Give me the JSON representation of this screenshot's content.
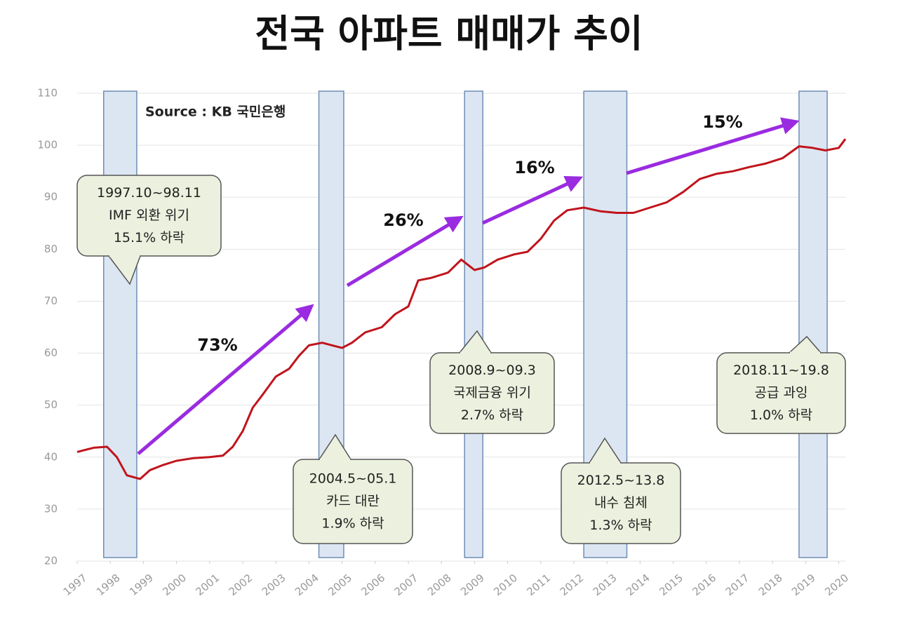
{
  "chart_data": {
    "type": "line",
    "title": "전국 아파트 매매가 추이",
    "source": "Source :  KB 국민은행",
    "x": [
      1997.0,
      1997.5,
      1997.9,
      1998.2,
      1998.5,
      1998.9,
      1999.2,
      1999.6,
      2000.0,
      2000.5,
      2001.0,
      2001.4,
      2001.7,
      2002.0,
      2002.3,
      2002.6,
      2003.0,
      2003.4,
      2003.7,
      2004.0,
      2004.4,
      2004.7,
      2005.0,
      2005.3,
      2005.7,
      2006.2,
      2006.6,
      2007.0,
      2007.3,
      2007.7,
      2008.2,
      2008.6,
      2009.0,
      2009.3,
      2009.7,
      2010.2,
      2010.6,
      2011.0,
      2011.4,
      2011.8,
      2012.3,
      2012.8,
      2013.3,
      2013.8,
      2014.3,
      2014.8,
      2015.3,
      2015.8,
      2016.3,
      2016.8,
      2017.3,
      2017.8,
      2018.3,
      2018.8,
      2019.2,
      2019.6,
      2020.0,
      2020.2
    ],
    "values": [
      41,
      41.8,
      42,
      40,
      36.5,
      35.8,
      37.5,
      38.5,
      39.3,
      39.8,
      40,
      40.3,
      42,
      45,
      49.5,
      52,
      55.5,
      57,
      59.5,
      61.5,
      62,
      61.5,
      61,
      62,
      64,
      65,
      67.5,
      69,
      74,
      74.5,
      75.5,
      78,
      76,
      76.5,
      78,
      79,
      79.5,
      82,
      85.5,
      87.5,
      88,
      87.3,
      87,
      87,
      88,
      89,
      91,
      93.5,
      94.5,
      95,
      95.8,
      96.5,
      97.5,
      99.8,
      99.5,
      99,
      99.5,
      101.2
    ],
    "color": "#c0141c",
    "xlim": [
      1997,
      2020.2
    ],
    "xticks": [
      1997,
      1998,
      1999,
      2000,
      2001,
      2002,
      2003,
      2004,
      2005,
      2006,
      2007,
      2008,
      2009,
      2010,
      2011,
      2012,
      2013,
      2014,
      2015,
      2016,
      2017,
      2018,
      2019,
      2020
    ],
    "ylim": [
      20,
      110
    ],
    "yticks": [
      20,
      30,
      40,
      50,
      60,
      70,
      80,
      90,
      100,
      110
    ],
    "grid": true,
    "periods": [
      {
        "start": 1997.8,
        "end": 1998.8
      },
      {
        "start": 2004.3,
        "end": 2005.05
      },
      {
        "start": 2008.7,
        "end": 2009.25
      },
      {
        "start": 2012.3,
        "end": 2013.6
      },
      {
        "start": 2018.8,
        "end": 2019.65
      }
    ],
    "period_color": "#dce6f2",
    "arrow_color": "#9a2be0",
    "growth_labels": [
      "73%",
      "26%",
      "16%",
      "15%"
    ],
    "callouts": [
      {
        "lines": [
          "1997.10~98.11",
          "IMF 외환 위기",
          "15.1% 하락"
        ]
      },
      {
        "lines": [
          "2004.5~05.1",
          "카드 대란",
          "1.9% 하락"
        ]
      },
      {
        "lines": [
          "2008.9~09.3",
          "국제금융 위기",
          "2.7% 하락"
        ]
      },
      {
        "lines": [
          "2012.5~13.8",
          "내수 침체",
          "1.3% 하락"
        ]
      },
      {
        "lines": [
          "2018.11~19.8",
          "공급 과잉",
          "1.0% 하락"
        ]
      }
    ]
  }
}
